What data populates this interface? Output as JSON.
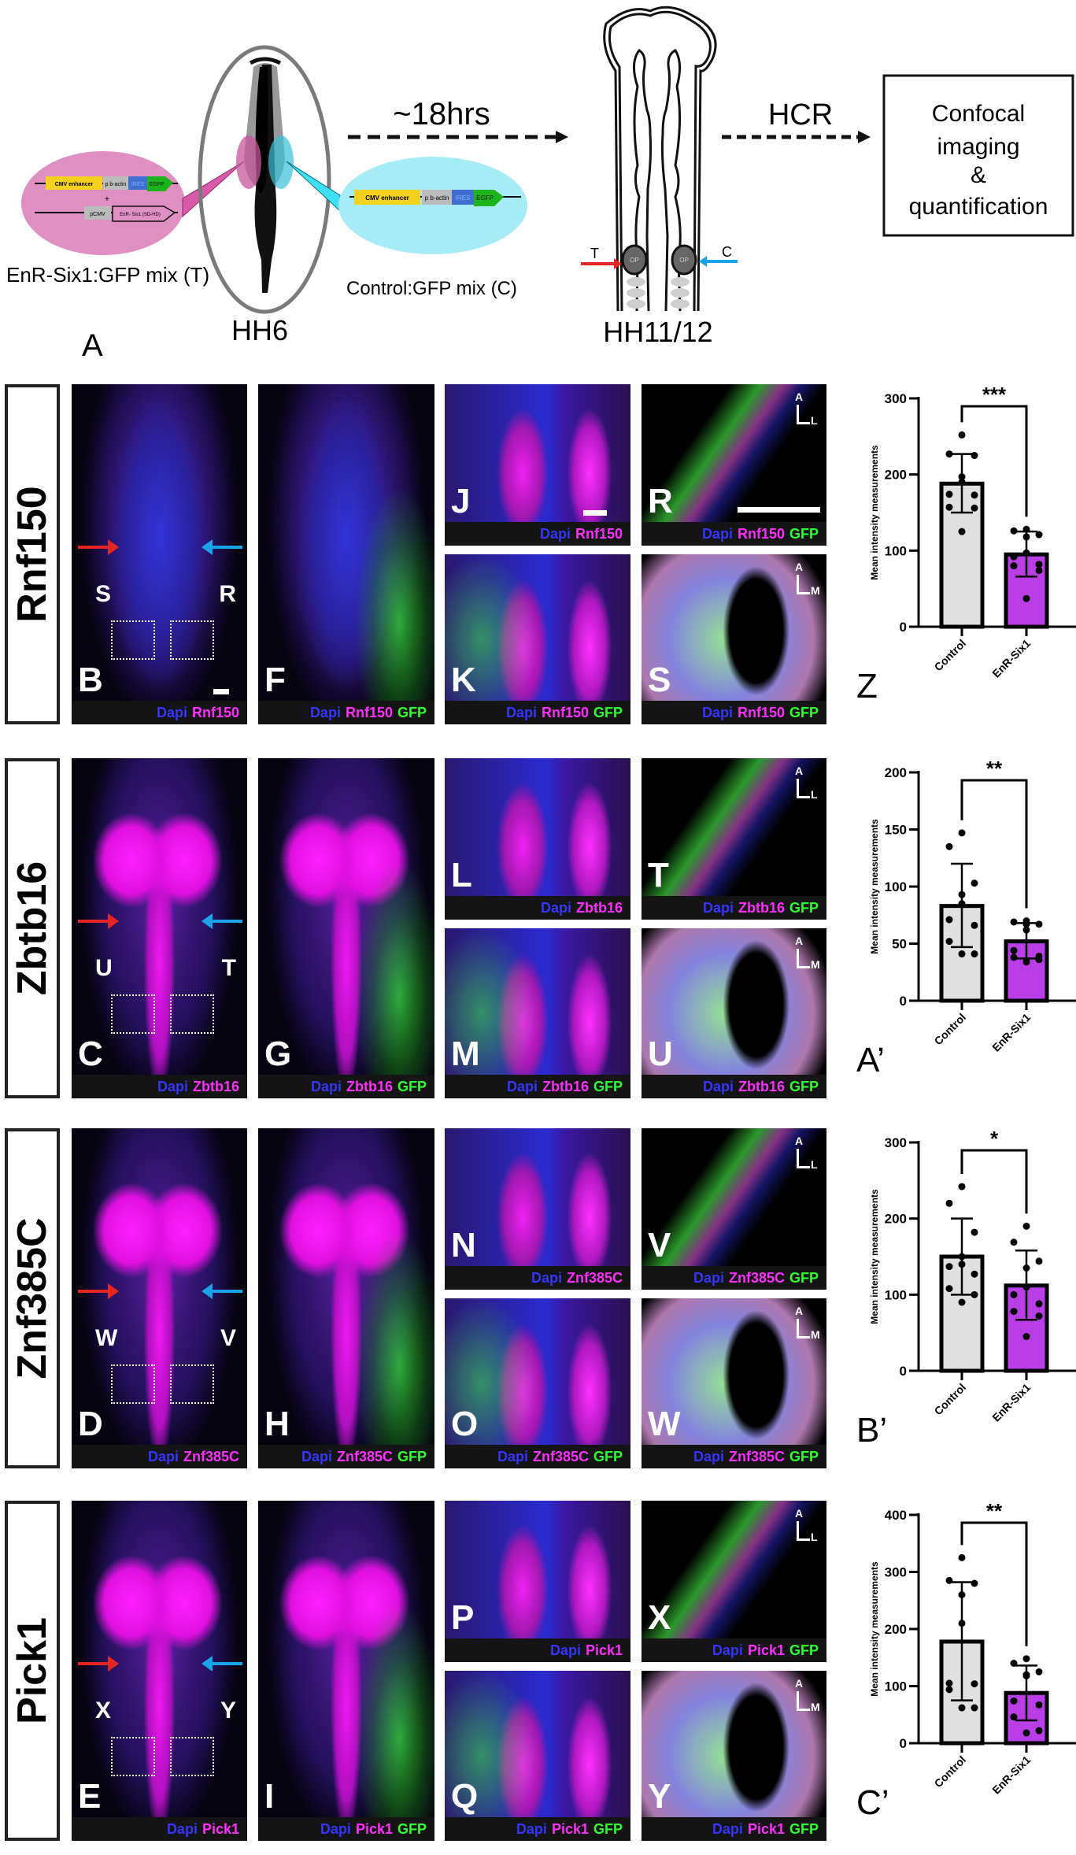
{
  "panel_a": {
    "letter": "A",
    "treatment_label": "EnR-Six1:GFP mix (T)",
    "control_label": "Control:GFP mix (C)",
    "stage_early": "HH6",
    "stage_late": "HH11/12",
    "time_label": "~18hrs",
    "method_label": "HCR",
    "outcome_lines": [
      "Confocal",
      "imaging",
      "&",
      "quantification"
    ],
    "construct_parts": {
      "enhancer": "CMV enhancer",
      "promoter": "p b-actin",
      "ires": "IRES",
      "reporter": "EGFP",
      "pcmv": "pCMV",
      "insert": "EnR- Six1 (SD-HD)",
      "plus": "+"
    },
    "side_t": "T",
    "side_c": "C",
    "placode": "OP",
    "colors": {
      "treatment": "#e08fc3",
      "control": "#a6ecf7",
      "enhancer": "#f5d21e",
      "ires": "#3f6fd0",
      "egfp": "#1db31d",
      "t_arrow": "#e52521",
      "c_arrow": "#1aa3e8"
    }
  },
  "channels": {
    "dapi": "Dapi",
    "gfp": "GFP"
  },
  "colors": {
    "dapi": "#3535ff",
    "gene": "#ff30ff",
    "gfp": "#30ff30",
    "control_bar": "#e0e0e0",
    "enr_bar": "#b93ee6"
  },
  "rows": [
    {
      "gene": "Rnf150",
      "whole": "B",
      "box_left": "S",
      "box_right": "R",
      "merged": "F",
      "zoom_top": "J",
      "zoom_bottom": "K",
      "section_top": "R",
      "section_bottom": "S",
      "axis_top": [
        "A",
        "L"
      ],
      "axis_bottom": [
        "A",
        "M"
      ]
    },
    {
      "gene": "Zbtb16",
      "whole": "C",
      "box_left": "U",
      "box_right": "T",
      "merged": "G",
      "zoom_top": "L",
      "zoom_bottom": "M",
      "section_top": "T",
      "section_bottom": "U",
      "axis_top": [
        "A",
        "L"
      ],
      "axis_bottom": [
        "A",
        "M"
      ]
    },
    {
      "gene": "Znf385C",
      "whole": "D",
      "box_left": "W",
      "box_right": "V",
      "merged": "H",
      "zoom_top": "N",
      "zoom_bottom": "O",
      "section_top": "V",
      "section_bottom": "W",
      "axis_top": [
        "A",
        "L"
      ],
      "axis_bottom": [
        "A",
        "M"
      ]
    },
    {
      "gene": "Pick1",
      "whole": "E",
      "box_left": "X",
      "box_right": "Y",
      "merged": "I",
      "zoom_top": "P",
      "zoom_bottom": "Q",
      "section_top": "X",
      "section_bottom": "Y",
      "axis_top": [
        "A",
        "L"
      ],
      "axis_bottom": [
        "A",
        "M"
      ]
    }
  ],
  "chart_data": [
    {
      "type": "bar",
      "panel": "Z",
      "ylabel": "Mean intensity measurements",
      "categories": [
        "Control",
        "EnR-Six1"
      ],
      "ylim": [
        0,
        300
      ],
      "yticks": [
        0,
        100,
        200,
        300
      ],
      "significance": "***",
      "series": [
        {
          "values": [
            188,
            95
          ],
          "error_low": [
            150,
            66
          ],
          "error_high": [
            227,
            125
          ],
          "points": [
            [
              252,
              227,
              225,
              197,
              190,
              174,
              173,
              157,
              156,
              125
            ],
            [
              128,
              126,
              121,
              118,
              97,
              92,
              82,
              80,
              74,
              37
            ]
          ]
        }
      ]
    },
    {
      "type": "bar",
      "panel": "A’",
      "ylabel": "Mean intensity measurements",
      "categories": [
        "Control",
        "EnR-Six1"
      ],
      "ylim": [
        0,
        200
      ],
      "yticks": [
        0,
        50,
        100,
        150,
        200
      ],
      "significance": "**",
      "series": [
        {
          "values": [
            83,
            52
          ],
          "error_low": [
            47,
            37
          ],
          "error_high": [
            120,
            68
          ],
          "points": [
            [
              147,
              135,
              103,
              93,
              85,
              71,
              66,
              52,
              41,
              41
            ],
            [
              70,
              69,
              67,
              67,
              62,
              44,
              39,
              38,
              36,
              34
            ]
          ]
        }
      ]
    },
    {
      "type": "bar",
      "panel": "B’",
      "ylabel": "Mean intensity measurements",
      "categories": [
        "Control",
        "EnR-Six1"
      ],
      "ylim": [
        0,
        300
      ],
      "yticks": [
        0,
        100,
        200,
        300
      ],
      "significance": "*",
      "series": [
        {
          "values": [
            150,
            112
          ],
          "error_low": [
            100,
            67
          ],
          "error_high": [
            200,
            158
          ],
          "points": [
            [
              242,
              220,
              182,
              150,
              140,
              137,
              127,
              108,
              100,
              90
            ],
            [
              190,
              169,
              144,
              135,
              110,
              100,
              88,
              78,
              72,
              45
            ]
          ]
        }
      ]
    },
    {
      "type": "bar",
      "panel": "C’",
      "ylabel": "Mean intensity measurements",
      "categories": [
        "Control",
        "EnR-Six1"
      ],
      "ylim": [
        0,
        400
      ],
      "yticks": [
        0,
        100,
        200,
        300,
        400
      ],
      "significance": "**",
      "series": [
        {
          "values": [
            178,
            88
          ],
          "error_low": [
            75,
            40
          ],
          "error_high": [
            282,
            136
          ],
          "points": [
            [
              325,
              285,
              280,
              260,
              210,
              105,
              104,
              94,
              62,
              62
            ],
            [
              148,
              140,
              125,
              120,
              118,
              74,
              67,
              46,
              22,
              18
            ]
          ]
        }
      ]
    }
  ]
}
